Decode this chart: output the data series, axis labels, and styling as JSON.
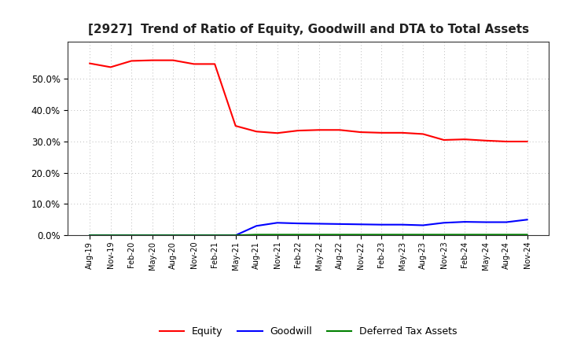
{
  "title": "[2927]  Trend of Ratio of Equity, Goodwill and DTA to Total Assets",
  "x_labels": [
    "Aug-19",
    "Nov-19",
    "Feb-20",
    "May-20",
    "Aug-20",
    "Nov-20",
    "Feb-21",
    "May-21",
    "Aug-21",
    "Nov-21",
    "Feb-22",
    "May-22",
    "Aug-22",
    "Nov-22",
    "Feb-23",
    "May-23",
    "Aug-23",
    "Nov-23",
    "Feb-24",
    "May-24",
    "Aug-24",
    "Nov-24"
  ],
  "equity": [
    0.55,
    0.538,
    0.558,
    0.56,
    0.56,
    0.548,
    0.548,
    0.35,
    0.332,
    0.327,
    0.335,
    0.337,
    0.337,
    0.33,
    0.328,
    0.328,
    0.324,
    0.305,
    0.307,
    0.303,
    0.3,
    0.3
  ],
  "goodwill": [
    0.0,
    0.0,
    0.0,
    0.0,
    0.0,
    0.0,
    0.0,
    0.0,
    0.03,
    0.04,
    0.038,
    0.037,
    0.036,
    0.035,
    0.034,
    0.034,
    0.032,
    0.04,
    0.043,
    0.042,
    0.042,
    0.05
  ],
  "dta": [
    0.0,
    0.0,
    0.0,
    0.0,
    0.0,
    0.0,
    0.0,
    0.0,
    0.002,
    0.002,
    0.002,
    0.002,
    0.002,
    0.002,
    0.002,
    0.002,
    0.002,
    0.002,
    0.002,
    0.002,
    0.002,
    0.002
  ],
  "equity_color": "#ff0000",
  "goodwill_color": "#0000ff",
  "dta_color": "#008000",
  "ylim": [
    0.0,
    0.62
  ],
  "yticks": [
    0.0,
    0.1,
    0.2,
    0.3,
    0.4,
    0.5
  ],
  "background_color": "#ffffff",
  "grid_color": "#aaaaaa",
  "legend_labels": [
    "Equity",
    "Goodwill",
    "Deferred Tax Assets"
  ]
}
